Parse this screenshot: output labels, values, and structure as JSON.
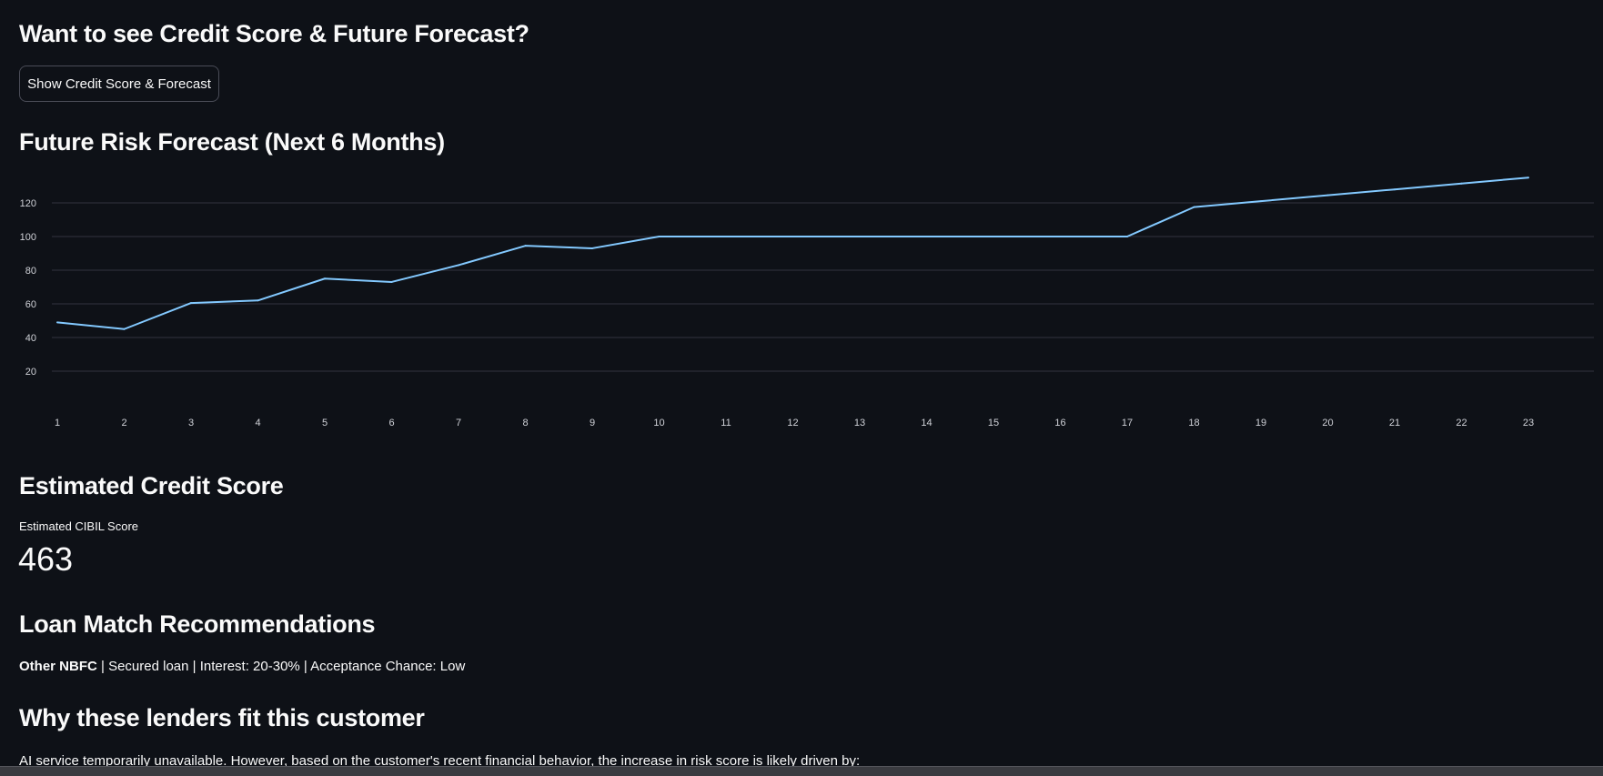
{
  "section1": {
    "title": "Want to see Credit Score & Future Forecast?",
    "button_label": "Show Credit Score & Forecast"
  },
  "forecast": {
    "title": "Future Risk Forecast (Next 6 Months)"
  },
  "chart_data": {
    "type": "line",
    "title": "Future Risk Forecast (Next 6 Months)",
    "xlabel": "",
    "ylabel": "",
    "x": [
      1,
      2,
      3,
      4,
      5,
      6,
      7,
      8,
      9,
      10,
      11,
      12,
      13,
      14,
      15,
      16,
      17,
      18,
      19,
      20,
      21,
      22,
      23
    ],
    "series": [
      {
        "name": "risk",
        "color": "#83c9ff",
        "values": [
          49,
          45,
          60.5,
          62,
          75,
          73,
          83,
          94.5,
          93,
          100,
          100,
          100,
          100,
          100,
          100,
          100,
          100,
          117.5,
          121,
          124.5,
          128,
          131.5,
          135
        ]
      }
    ],
    "yticks": [
      20,
      40,
      60,
      80,
      100,
      120
    ],
    "ylim": [
      0,
      140
    ],
    "grid": true
  },
  "credit": {
    "title": "Estimated Credit Score",
    "metric_label": "Estimated CIBIL Score",
    "metric_value": "463"
  },
  "loans": {
    "title": "Loan Match Recommendations",
    "lender": "Other NBFC",
    "details": " | Secured loan | Interest: 20-30% | Acceptance Chance: Low"
  },
  "why": {
    "title": "Why these lenders fit this customer",
    "text": "AI service temporarily unavailable. However, based on the customer's recent financial behavior, the increase in risk score is likely driven by:"
  }
}
